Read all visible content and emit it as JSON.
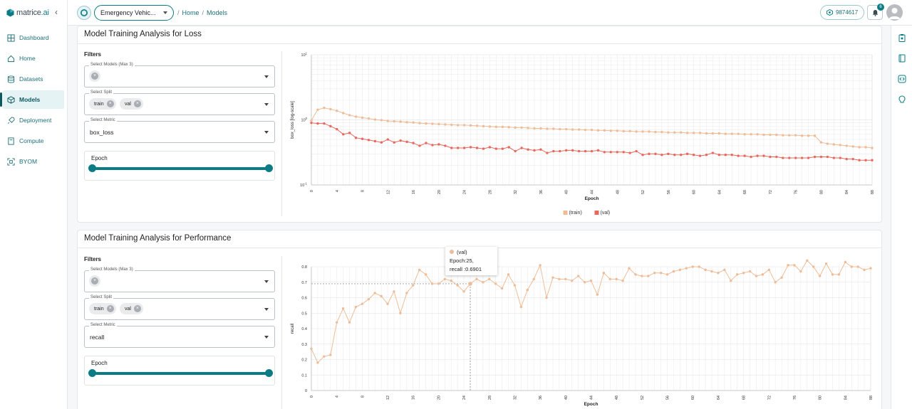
{
  "app": {
    "logo_text": "matrice",
    "logo_suffix": ".ai",
    "brand_color": "#0b7c86"
  },
  "sidebar": {
    "items": [
      {
        "label": "Dashboard",
        "icon": "dashboard-icon"
      },
      {
        "label": "Home",
        "icon": "home-icon"
      },
      {
        "label": "Datasets",
        "icon": "database-icon"
      },
      {
        "label": "Models",
        "icon": "cube-icon",
        "active": true
      },
      {
        "label": "Deployment",
        "icon": "rocket-icon"
      },
      {
        "label": "Compute",
        "icon": "server-icon"
      },
      {
        "label": "BYOM",
        "icon": "scan-icon"
      }
    ]
  },
  "topbar": {
    "project": "Emergency Vehic...",
    "breadcrumb": [
      "Home",
      "Models"
    ],
    "credits": "9874617",
    "notifications": "6"
  },
  "loss_card": {
    "title": "Model Training Analysis for Loss",
    "filters_title": "Filters",
    "models_label": "Select Models (Max 3)",
    "split_label": "Select Split",
    "split_chips": [
      "train",
      "val"
    ],
    "metric_label": "Select Metric",
    "metric_value": "box_loss",
    "epoch_label": "Epoch",
    "epoch_range": [
      0,
      88
    ]
  },
  "perf_card": {
    "title": "Model Training Analysis for Performance",
    "filters_title": "Filters",
    "models_label": "Select Models (Max 3)",
    "split_label": "Select Split",
    "split_chips": [
      "train",
      "val"
    ],
    "metric_label": "Select Metric",
    "metric_value": "recall",
    "epoch_label": "Epoch",
    "epoch_range": [
      0,
      88
    ],
    "tooltip": {
      "series": "(val)",
      "epoch": "Epoch:25,",
      "value": "recall :0.6901"
    }
  },
  "chart_data": [
    {
      "type": "line",
      "xlabel": "Epoch",
      "ylabel": "box_loss [log-scale]",
      "yscale": "log",
      "ylim": [
        0.1,
        10
      ],
      "y_ticks": [
        "10^1",
        "10^0",
        "10^-1"
      ],
      "x_ticks": [
        0,
        4,
        8,
        12,
        16,
        20,
        24,
        28,
        32,
        36,
        40,
        44,
        48,
        52,
        56,
        60,
        64,
        68,
        72,
        76,
        80,
        84,
        88
      ],
      "grid": true,
      "legend": "bottom",
      "series": [
        {
          "name": "(train)",
          "color": "#eebd98",
          "values": [
            0.98,
            1.43,
            1.53,
            1.46,
            1.38,
            1.27,
            1.18,
            1.12,
            1.08,
            1.05,
            1.01,
            0.99,
            0.96,
            0.95,
            0.94,
            0.92,
            0.91,
            0.89,
            0.88,
            0.87,
            0.86,
            0.85,
            0.84,
            0.83,
            0.83,
            0.82,
            0.81,
            0.8,
            0.79,
            0.78,
            0.78,
            0.77,
            0.76,
            0.76,
            0.75,
            0.74,
            0.74,
            0.73,
            0.73,
            0.72,
            0.72,
            0.71,
            0.71,
            0.7,
            0.7,
            0.69,
            0.69,
            0.68,
            0.68,
            0.67,
            0.67,
            0.66,
            0.66,
            0.66,
            0.65,
            0.65,
            0.64,
            0.64,
            0.64,
            0.63,
            0.63,
            0.63,
            0.62,
            0.62,
            0.62,
            0.61,
            0.61,
            0.61,
            0.6,
            0.6,
            0.6,
            0.59,
            0.59,
            0.59,
            0.58,
            0.58,
            0.58,
            0.57,
            0.57,
            0.57,
            0.45,
            0.43,
            0.42,
            0.41,
            0.4,
            0.39,
            0.38,
            0.38,
            0.37
          ]
        },
        {
          "name": "(val)",
          "color": "#e8685f",
          "values": [
            0.9,
            0.88,
            0.88,
            0.8,
            0.72,
            0.6,
            0.63,
            0.53,
            0.51,
            0.49,
            0.47,
            0.45,
            0.5,
            0.45,
            0.48,
            0.46,
            0.44,
            0.4,
            0.44,
            0.41,
            0.42,
            0.4,
            0.37,
            0.37,
            0.37,
            0.38,
            0.37,
            0.36,
            0.38,
            0.36,
            0.36,
            0.38,
            0.33,
            0.37,
            0.35,
            0.34,
            0.35,
            0.31,
            0.33,
            0.33,
            0.34,
            0.34,
            0.33,
            0.33,
            0.33,
            0.34,
            0.32,
            0.32,
            0.32,
            0.32,
            0.31,
            0.33,
            0.29,
            0.3,
            0.3,
            0.29,
            0.3,
            0.29,
            0.29,
            0.3,
            0.29,
            0.28,
            0.29,
            0.31,
            0.29,
            0.29,
            0.29,
            0.28,
            0.28,
            0.27,
            0.28,
            0.28,
            0.27,
            0.27,
            0.26,
            0.26,
            0.26,
            0.26,
            0.26,
            0.27,
            0.27,
            0.27,
            0.26,
            0.26,
            0.25,
            0.25,
            0.24,
            0.24,
            0.24
          ]
        }
      ]
    },
    {
      "type": "line",
      "xlabel": "Epoch",
      "ylabel": "recall",
      "ylim": [
        0,
        0.8
      ],
      "y_ticks": [
        0,
        0.1,
        0.2,
        0.3,
        0.4,
        0.5,
        0.6,
        0.7,
        0.8
      ],
      "x_ticks": [
        0,
        4,
        8,
        12,
        16,
        20,
        24,
        28,
        32,
        36,
        40,
        44,
        48,
        52,
        56,
        60,
        64,
        68,
        72,
        76,
        80,
        84,
        88
      ],
      "grid": true,
      "series": [
        {
          "name": "(val)",
          "color": "#eebd98",
          "values": [
            0.27,
            0.18,
            0.22,
            0.23,
            0.44,
            0.53,
            0.44,
            0.54,
            0.56,
            0.59,
            0.63,
            0.61,
            0.56,
            0.64,
            0.5,
            0.63,
            0.68,
            0.78,
            0.75,
            0.69,
            0.69,
            0.72,
            0.71,
            0.68,
            0.64,
            0.69,
            0.72,
            0.7,
            0.72,
            0.69,
            0.66,
            0.75,
            0.68,
            0.54,
            0.65,
            0.72,
            0.81,
            0.6,
            0.73,
            0.72,
            0.72,
            0.71,
            0.74,
            0.7,
            0.71,
            0.62,
            0.76,
            0.72,
            0.72,
            0.71,
            0.79,
            0.75,
            0.74,
            0.74,
            0.76,
            0.76,
            0.75,
            0.77,
            0.78,
            0.79,
            0.8,
            0.8,
            0.78,
            0.77,
            0.76,
            0.78,
            0.71,
            0.75,
            0.76,
            0.77,
            0.74,
            0.75,
            0.78,
            0.7,
            0.73,
            0.81,
            0.81,
            0.77,
            0.84,
            0.8,
            0.74,
            0.82,
            0.75,
            0.75,
            0.83,
            0.8,
            0.8,
            0.78,
            0.79
          ]
        }
      ],
      "hover_epoch": 25
    }
  ]
}
